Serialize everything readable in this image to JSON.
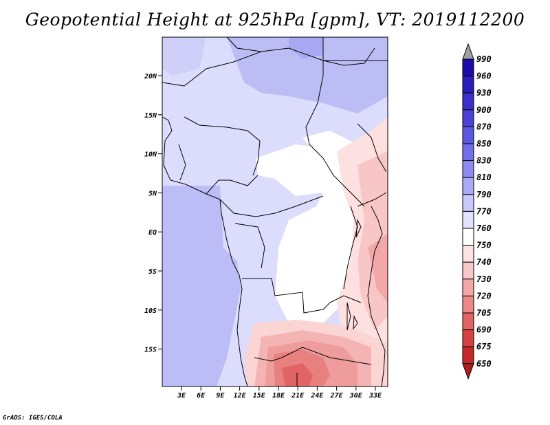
{
  "title": "Geopotential Height at 925hPa [gpm], VT: 2019112200",
  "credit": "GrADS: IGES/COLA",
  "map": {
    "lat_labels": [
      "20N",
      "15N",
      "10N",
      "5N",
      "EQ",
      "5S",
      "10S",
      "15S"
    ],
    "lon_labels": [
      "3E",
      "6E",
      "9E",
      "12E",
      "15E",
      "18E",
      "21E",
      "24E",
      "27E",
      "30E",
      "33E"
    ]
  },
  "colorbar": {
    "levels": [
      "990",
      "960",
      "930",
      "900",
      "870",
      "850",
      "830",
      "810",
      "790",
      "770",
      "760",
      "750",
      "740",
      "730",
      "720",
      "705",
      "690",
      "675",
      "650"
    ],
    "colors": [
      "#1e0ca8",
      "#2a1eb9",
      "#3b30c9",
      "#4a42d6",
      "#5c57e0",
      "#7270e8",
      "#8c8cf0",
      "#aaaaf5",
      "#c8c8fa",
      "#e2e2fd",
      "#ffffff",
      "#fde2e2",
      "#f9c8c8",
      "#f3a8a8",
      "#ec8888",
      "#e26464",
      "#d64242",
      "#c62828",
      "#b01c1c"
    ],
    "top_color": "#a0a0a0"
  }
}
